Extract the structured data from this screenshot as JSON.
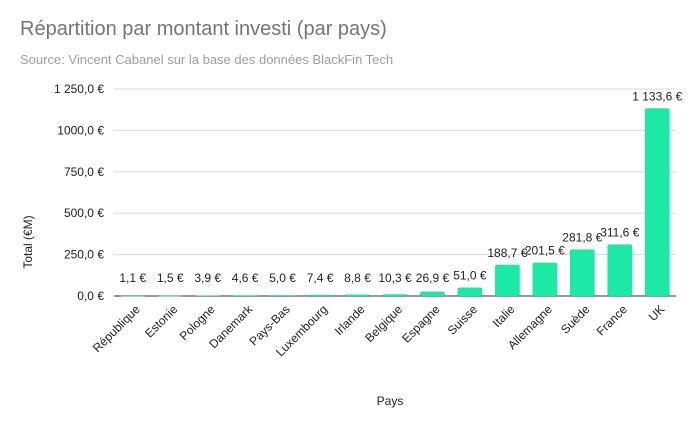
{
  "chart_data": {
    "type": "bar",
    "title": "Répartition par montant investi (par pays)",
    "subtitle": "Source: Vincent Cabanel sur la base des données BlackFin Tech",
    "xlabel": "Pays",
    "ylabel": "Total (€M)",
    "ylim": [
      0,
      1250
    ],
    "yticks": [
      0,
      250,
      500,
      750,
      1000,
      1250
    ],
    "ytick_labels": [
      "0,0 €",
      "250,0 €",
      "500,0 €",
      "750,0 €",
      "1000,0 €",
      "1 250,0 €"
    ],
    "grid": true,
    "bar_color": "#1de9a6",
    "categories": [
      "République",
      "Estonie",
      "Pologne",
      "Danemark",
      "Pays-Bas",
      "Luxembourg",
      "Irlande",
      "Belgique",
      "Espagne",
      "Suisse",
      "Italie",
      "Allemagne",
      "Suède",
      "France",
      "UK"
    ],
    "values": [
      1.1,
      1.5,
      3.9,
      4.6,
      5.0,
      7.4,
      8.8,
      10.3,
      26.9,
      51.0,
      188.7,
      201.5,
      281.8,
      311.6,
      1133.6
    ],
    "data_labels": [
      "1,1 €",
      "1,5 €",
      "3,9 €",
      "4,6 €",
      "5,0 €",
      "7,4 €",
      "8,8 €",
      "10,3 €",
      "26,9 €",
      "51,0 €",
      "188,7 €",
      "201,5 €",
      "281,8 €",
      "311,6 €",
      "1 133,6 €"
    ]
  }
}
